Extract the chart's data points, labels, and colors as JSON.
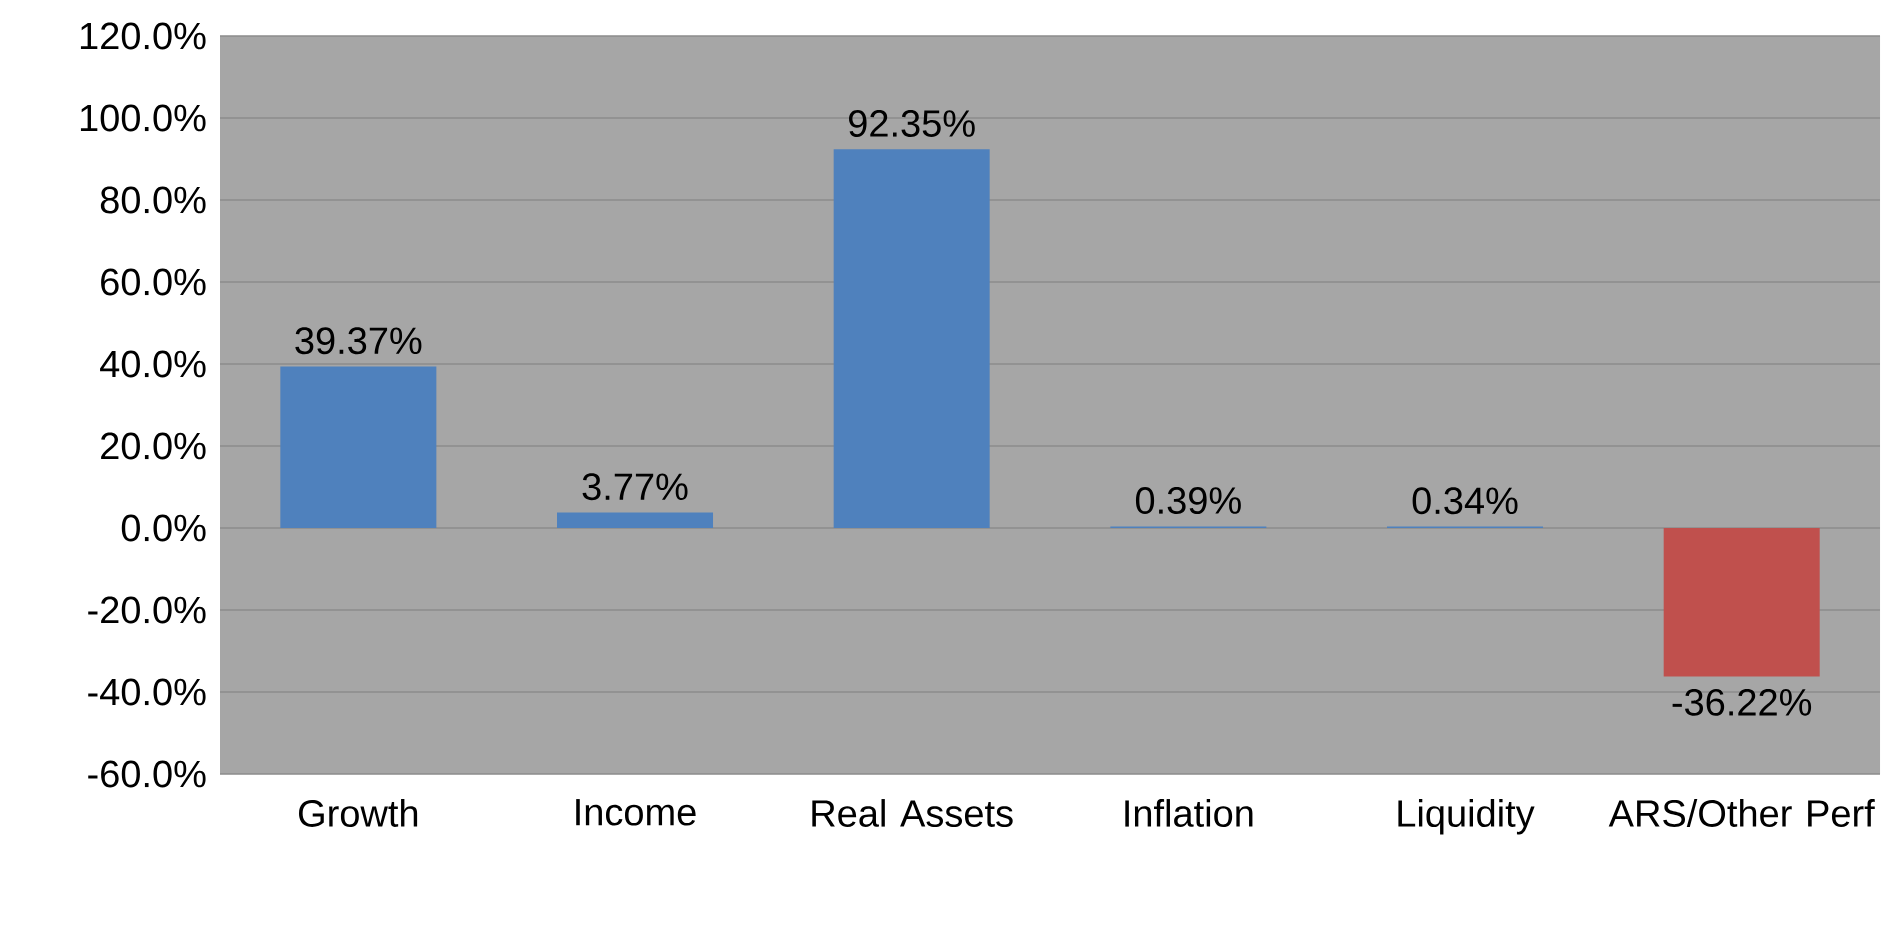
{
  "chart_data": {
    "type": "bar",
    "categories": [
      "Growth",
      "Income",
      "Real Assets",
      "Inflation",
      "Liquidity",
      "ARS/Other Perf"
    ],
    "values": [
      39.37,
      3.77,
      92.35,
      0.39,
      0.34,
      -36.22
    ],
    "colors": [
      "#4f81bd",
      "#4f81bd",
      "#4f81bd",
      "#4f81bd",
      "#4f81bd",
      "#c0504d"
    ],
    "value_labels": [
      "39.37%",
      "3.77%",
      "92.35%",
      "0.39%",
      "0.34%",
      "-36.22%"
    ],
    "ylim": [
      -60,
      120
    ],
    "yticks": [
      {
        "value": -60,
        "label": "-60.0%"
      },
      {
        "value": -40,
        "label": "-40.0%"
      },
      {
        "value": -20,
        "label": "-20.0%"
      },
      {
        "value": 0,
        "label": "0.0%"
      },
      {
        "value": 20,
        "label": "20.0%"
      },
      {
        "value": 40,
        "label": "40.0%"
      },
      {
        "value": 60,
        "label": "60.0%"
      },
      {
        "value": 80,
        "label": "80.0%"
      },
      {
        "value": 100,
        "label": "100.0%"
      },
      {
        "value": 120,
        "label": "120.0%"
      }
    ],
    "grid": "y"
  }
}
